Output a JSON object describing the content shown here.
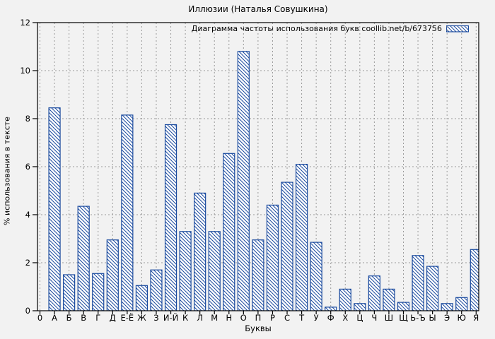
{
  "chart_data": {
    "type": "bar",
    "title": "Иллюзии (Наталья Совушкина)",
    "legend": "Диаграмма частоты использования букв coollib.net/b/673756",
    "legend_position": "top-right",
    "xlabel": "Буквы",
    "ylabel": "% использования в тексте",
    "ylim": [
      0,
      12
    ],
    "yticks": [
      0,
      2,
      4,
      6,
      8,
      10,
      12
    ],
    "x_first_tick": "0",
    "categories": [
      "А",
      "Б",
      "В",
      "Г",
      "Д",
      "Е-Ё",
      "Ж",
      "З",
      "И-Й",
      "К",
      "Л",
      "М",
      "Н",
      "О",
      "П",
      "Р",
      "С",
      "Т",
      "У",
      "Ф",
      "Х",
      "Ц",
      "Ч",
      "Ш",
      "Щ",
      "Ь-Ъ",
      "Ы",
      "Э",
      "Ю",
      "Я"
    ],
    "values": [
      8.45,
      1.5,
      4.35,
      1.55,
      2.95,
      8.15,
      1.05,
      1.7,
      7.75,
      3.3,
      4.9,
      3.3,
      6.55,
      10.8,
      2.95,
      4.4,
      5.35,
      6.1,
      2.85,
      0.15,
      0.9,
      0.3,
      1.45,
      0.9,
      0.35,
      2.3,
      1.85,
      0.3,
      0.55,
      2.55
    ],
    "grid": true,
    "grid_style": "dashed",
    "bar_fill": "diagonal-hatch",
    "bar_color": "#1a4a9e",
    "grid_color": "#9a9a9a",
    "axis_color": "#000000"
  }
}
